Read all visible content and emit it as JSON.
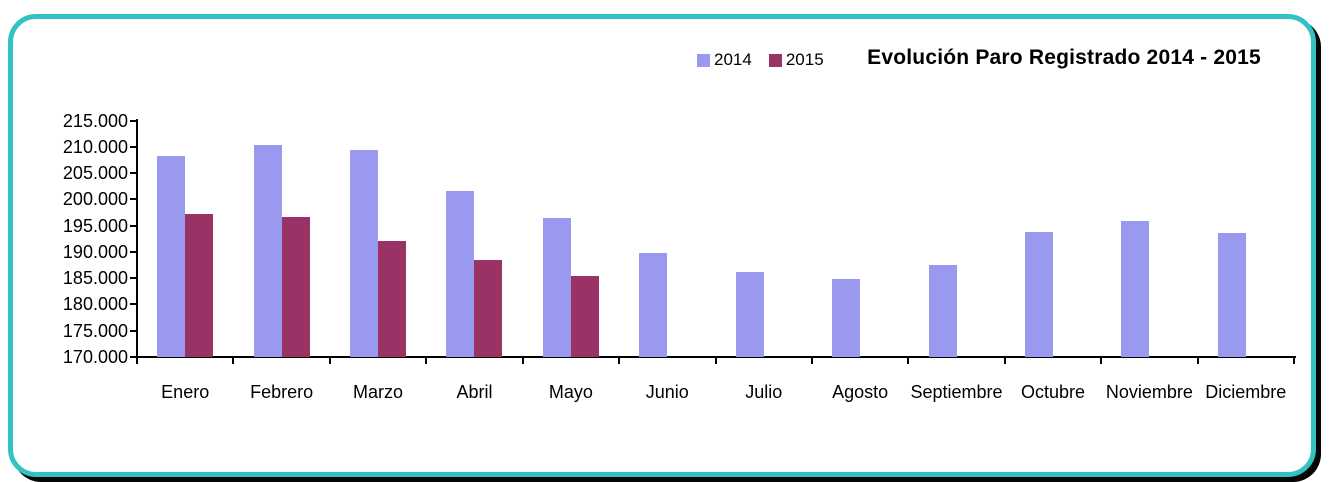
{
  "frame": {
    "border_color": "#33c2c2",
    "shadow_color": "#060606",
    "background": "#ffffff"
  },
  "chart_data": {
    "type": "bar",
    "title": "Evolución Paro Registrado 2014 - 2015",
    "categories": [
      "Enero",
      "Febrero",
      "Marzo",
      "Abril",
      "Mayo",
      "Junio",
      "Julio",
      "Agosto",
      "Septiembre",
      "Octubre",
      "Noviembre",
      "Diciembre"
    ],
    "series": [
      {
        "name": "2014",
        "color": "#9999f0",
        "values": [
          208300,
          210300,
          209400,
          201600,
          196500,
          189800,
          186100,
          184800,
          187500,
          193800,
          195800,
          193500
        ]
      },
      {
        "name": "2015",
        "color": "#993366",
        "values": [
          197200,
          196700,
          192000,
          188500,
          185400,
          null,
          null,
          null,
          null,
          null,
          null,
          null
        ]
      }
    ],
    "ylim": [
      170000,
      215000
    ],
    "ytick_step": 5000,
    "ytick_labels": [
      "215.000",
      "210.000",
      "205.000",
      "200.000",
      "195.000",
      "190.000",
      "185.000",
      "180.000",
      "175.000",
      "170.000"
    ],
    "grid": false,
    "legend_position": "top-center",
    "axis_color": "#000000"
  }
}
